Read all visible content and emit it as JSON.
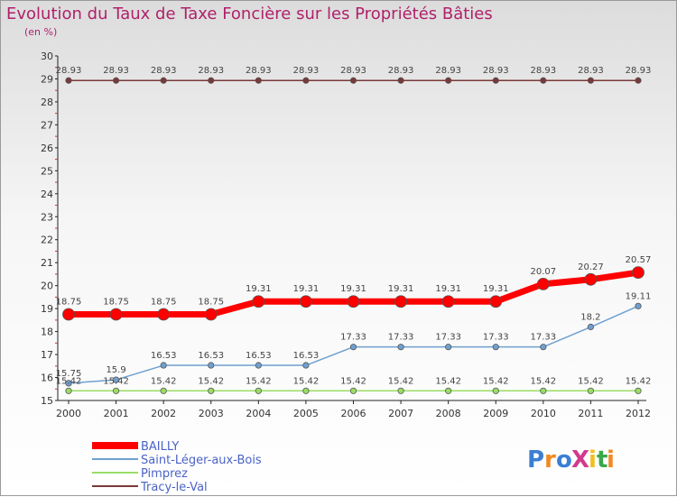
{
  "chart_data": {
    "type": "line",
    "title": "Evolution du Taux de Taxe Foncière sur les Propriétés Bâties",
    "subtitle": "(en %)",
    "xlabel": "",
    "ylabel": "",
    "x": [
      "2000",
      "2001",
      "2002",
      "2003",
      "2004",
      "2005",
      "2006",
      "2007",
      "2008",
      "2009",
      "2010",
      "2011",
      "2012"
    ],
    "ylim": [
      15,
      30
    ],
    "yticks": [
      "15",
      "16",
      "17",
      "18",
      "19",
      "20",
      "21",
      "22",
      "23",
      "24",
      "25",
      "26",
      "27",
      "28",
      "29",
      "30"
    ],
    "grid": false,
    "legend_position": "bottom-left",
    "series": [
      {
        "name": "BAILLY",
        "color": "#ff0000",
        "values": [
          18.75,
          18.75,
          18.75,
          18.75,
          19.31,
          19.31,
          19.31,
          19.31,
          19.31,
          19.31,
          20.07,
          20.27,
          20.57
        ],
        "labels": [
          "18.75",
          "18.75",
          "18.75",
          "18.75",
          "19.31",
          "19.31",
          "19.31",
          "19.31",
          "19.31",
          "19.31",
          "20.07",
          "20.27",
          "20.57"
        ]
      },
      {
        "name": "Saint-Léger-aux-Bois",
        "color": "#6fa0d0",
        "values": [
          15.75,
          15.9,
          16.53,
          16.53,
          16.53,
          16.53,
          17.33,
          17.33,
          17.33,
          17.33,
          17.33,
          18.2,
          19.11
        ],
        "labels": [
          "15.75",
          "15.9",
          "16.53",
          "16.53",
          "16.53",
          "16.53",
          "17.33",
          "17.33",
          "17.33",
          "17.33",
          "17.33",
          "18.2",
          "19.11"
        ]
      },
      {
        "name": "Pimprez",
        "color": "#99dd66",
        "values": [
          15.42,
          15.42,
          15.42,
          15.42,
          15.42,
          15.42,
          15.42,
          15.42,
          15.42,
          15.42,
          15.42,
          15.42,
          15.42
        ],
        "labels": [
          "15.42",
          "15.42",
          "15.42",
          "15.42",
          "15.42",
          "15.42",
          "15.42",
          "15.42",
          "15.42",
          "15.42",
          "15.42",
          "15.42",
          "15.42"
        ]
      },
      {
        "name": "Tracy-le-Val",
        "color": "#7a3838",
        "values": [
          28.93,
          28.93,
          28.93,
          28.93,
          28.93,
          28.93,
          28.93,
          28.93,
          28.93,
          28.93,
          28.93,
          28.93,
          28.93
        ],
        "labels": [
          "28.93",
          "28.93",
          "28.93",
          "28.93",
          "28.93",
          "28.93",
          "28.93",
          "28.93",
          "28.93",
          "28.93",
          "28.93",
          "28.93",
          "28.93"
        ]
      }
    ]
  },
  "logo": {
    "text": "ProXiti",
    "letters": [
      "P",
      "r",
      "o",
      "X",
      "i",
      "t",
      "i"
    ],
    "colors": [
      "#3b7fd4",
      "#f08a24",
      "#3b7fd4",
      "#d23a8c",
      "#f0c020",
      "#3aa84a",
      "#f08a24"
    ]
  }
}
